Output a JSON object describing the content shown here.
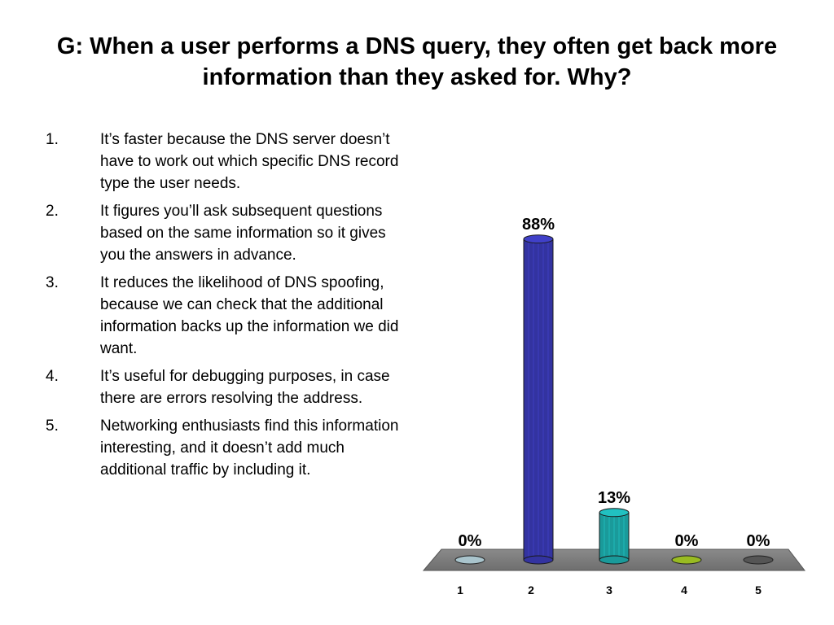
{
  "title": "G: When a user performs a DNS query, they often get back more information than they asked for. Why?",
  "answers": [
    {
      "num": "1.",
      "text": "It’s faster because the DNS server doesn’t have to work out which specific DNS record type the user needs."
    },
    {
      "num": "2.",
      "text": "It figures you’ll ask subsequent questions based on the same information so it gives you the answers in advance."
    },
    {
      "num": "3.",
      "text": "It reduces the likelihood of DNS spoofing, because we can check that the additional information backs up the information we did want."
    },
    {
      "num": "4.",
      "text": "It’s useful for debugging purposes, in case there are errors resolving the address."
    },
    {
      "num": "5.",
      "text": "Networking enthusiasts find this information interesting, and it doesn’t add much additional traffic by including it."
    }
  ],
  "chart_data": {
    "type": "bar",
    "categories": [
      "1",
      "2",
      "3",
      "4",
      "5"
    ],
    "values": [
      0,
      88,
      13,
      0,
      0
    ],
    "labels": [
      "0%",
      "88%",
      "13%",
      "0%",
      "0%"
    ],
    "colors": [
      "#a9c4cc",
      "#3333a0",
      "#1a9a9a",
      "#99bb22",
      "#555555"
    ],
    "ylim": [
      0,
      100
    ],
    "grid": false
  }
}
